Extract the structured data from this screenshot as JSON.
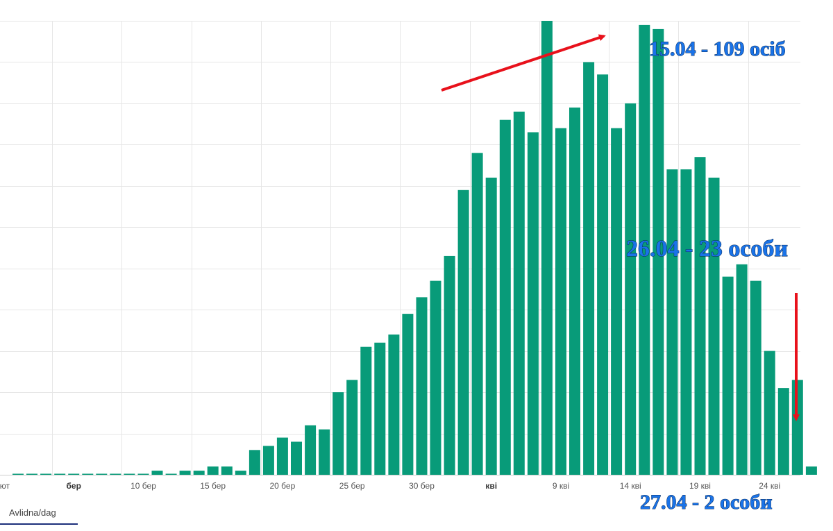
{
  "chart_data": {
    "type": "bar",
    "x_start_label": "лют",
    "tick_labels": [
      {
        "index": 0,
        "label": "лют",
        "strong": false
      },
      {
        "index": 4,
        "label": "бер",
        "strong": true
      },
      {
        "index": 9,
        "label": "10 бер",
        "strong": false
      },
      {
        "index": 14,
        "label": "15 бер",
        "strong": false
      },
      {
        "index": 19,
        "label": "20 бер",
        "strong": false
      },
      {
        "index": 24,
        "label": "25 бер",
        "strong": false
      },
      {
        "index": 29,
        "label": "30 бер",
        "strong": false
      },
      {
        "index": 34,
        "label": "кві",
        "strong": true
      },
      {
        "index": 39,
        "label": "9 кві",
        "strong": false
      },
      {
        "index": 44,
        "label": "14 кві",
        "strong": false
      },
      {
        "index": 49,
        "label": "19 кві",
        "strong": false
      },
      {
        "index": 54,
        "label": "24 кві",
        "strong": false
      }
    ],
    "values": [
      0,
      0,
      0,
      0,
      0,
      0,
      0,
      0,
      0,
      0,
      1,
      0,
      1,
      1,
      2,
      2,
      1,
      6,
      7,
      9,
      8,
      12,
      11,
      20,
      23,
      31,
      32,
      34,
      39,
      43,
      47,
      53,
      69,
      78,
      72,
      86,
      88,
      83,
      110,
      84,
      89,
      100,
      97,
      84,
      90,
      109,
      108,
      74,
      74,
      77,
      72,
      48,
      51,
      47,
      30,
      21,
      23,
      2
    ],
    "ylim": [
      0,
      115
    ],
    "y_gridlines": [
      0,
      10,
      20,
      30,
      40,
      50,
      60,
      70,
      80,
      90,
      100,
      110
    ],
    "grid": true,
    "bar_color": "#089b79",
    "annotations": [
      {
        "text": "15.04 - 109 осіб",
        "index": 45
      },
      {
        "text": "26.04 - 23 особи",
        "index": 56
      },
      {
        "text": "27.04 - 2 особи",
        "index": 57
      }
    ],
    "arrow_color": "#e8111b",
    "annotation_color": "#1a73e8"
  },
  "footer": {
    "tab_label": "Avlidna/dag"
  }
}
